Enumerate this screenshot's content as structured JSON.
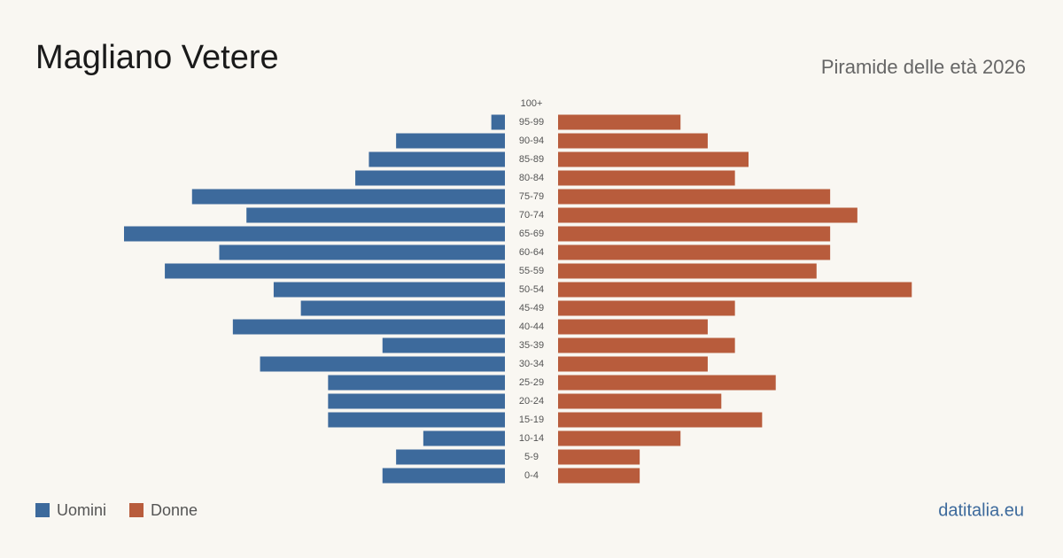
{
  "chart_data": {
    "type": "pyramid",
    "title": "Magliano Vetere",
    "subtitle": "Piramide delle età 2026",
    "source": "datitalia.eu",
    "categories": [
      "100+",
      "95-99",
      "90-94",
      "85-89",
      "80-84",
      "75-79",
      "70-74",
      "65-69",
      "60-64",
      "55-59",
      "50-54",
      "45-49",
      "40-44",
      "35-39",
      "30-34",
      "25-29",
      "20-24",
      "15-19",
      "10-14",
      "5-9",
      "0-4"
    ],
    "series": [
      {
        "name": "Uomini",
        "color": "#3d6a9c",
        "values": [
          0,
          1,
          8,
          10,
          11,
          23,
          19,
          28,
          21,
          25,
          17,
          15,
          20,
          9,
          18,
          13,
          13,
          13,
          6,
          8,
          9
        ]
      },
      {
        "name": "Donne",
        "color": "#b85c3c",
        "values": [
          0,
          9,
          11,
          14,
          13,
          20,
          22,
          20,
          20,
          19,
          26,
          13,
          11,
          13,
          11,
          16,
          12,
          15,
          9,
          6,
          6
        ]
      }
    ]
  }
}
